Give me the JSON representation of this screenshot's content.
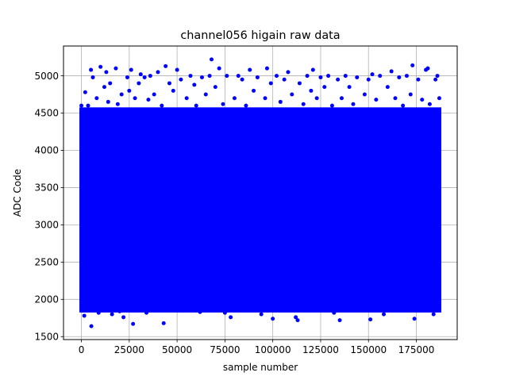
{
  "chart_data": {
    "type": "scatter",
    "title": "channel056 higain raw data",
    "xlabel": "sample number",
    "ylabel": "ADC Code",
    "xlim": [
      -9350,
      196350
    ],
    "ylim": [
      1460,
      5400
    ],
    "x_ticks": [
      0,
      25000,
      50000,
      75000,
      100000,
      125000,
      150000,
      175000
    ],
    "x_tick_labels": [
      "0",
      "25000",
      "50000",
      "75000",
      "100000",
      "125000",
      "150000",
      "175000"
    ],
    "y_ticks": [
      1500,
      2000,
      2500,
      3000,
      3500,
      4000,
      4500,
      5000
    ],
    "y_tick_labels": [
      "1500",
      "2000",
      "2500",
      "3000",
      "3500",
      "4000",
      "4500",
      "5000"
    ],
    "grid": true,
    "marker_color": "#0000ff",
    "series": [
      {
        "name": "",
        "x_range": [
          0,
          187000
        ],
        "dense_band": [
          1850,
          4550
        ],
        "points": [
          [
            0,
            4600
          ],
          [
            500,
            1850
          ],
          [
            1500,
            1780
          ],
          [
            2000,
            4780
          ],
          [
            3500,
            4600
          ],
          [
            5000,
            5080
          ],
          [
            5200,
            1640
          ],
          [
            6000,
            4980
          ],
          [
            8000,
            4700
          ],
          [
            9000,
            1820
          ],
          [
            10000,
            5120
          ],
          [
            12000,
            4850
          ],
          [
            13000,
            5050
          ],
          [
            14000,
            4650
          ],
          [
            15000,
            4900
          ],
          [
            16000,
            1800
          ],
          [
            18000,
            5100
          ],
          [
            19000,
            4620
          ],
          [
            20000,
            1840
          ],
          [
            21000,
            4750
          ],
          [
            22000,
            1760
          ],
          [
            24000,
            4980
          ],
          [
            25000,
            4800
          ],
          [
            26000,
            5080
          ],
          [
            27000,
            1670
          ],
          [
            28000,
            4700
          ],
          [
            30000,
            4900
          ],
          [
            31000,
            5020
          ],
          [
            33000,
            4980
          ],
          [
            34000,
            1820
          ],
          [
            35000,
            4680
          ],
          [
            36000,
            5000
          ],
          [
            38000,
            4750
          ],
          [
            40000,
            5050
          ],
          [
            42000,
            4600
          ],
          [
            43000,
            1680
          ],
          [
            44000,
            5130
          ],
          [
            46000,
            4900
          ],
          [
            48000,
            4800
          ],
          [
            50000,
            5080
          ],
          [
            52000,
            4950
          ],
          [
            53000,
            1850
          ],
          [
            55000,
            4700
          ],
          [
            57000,
            5000
          ],
          [
            59000,
            4880
          ],
          [
            60000,
            4600
          ],
          [
            62000,
            1830
          ],
          [
            63000,
            4980
          ],
          [
            65000,
            4750
          ],
          [
            67000,
            5000
          ],
          [
            68000,
            5220
          ],
          [
            70000,
            4850
          ],
          [
            72000,
            5100
          ],
          [
            74000,
            4620
          ],
          [
            75000,
            1820
          ],
          [
            76000,
            5000
          ],
          [
            78000,
            1760
          ],
          [
            80000,
            4700
          ],
          [
            82000,
            5000
          ],
          [
            84000,
            4950
          ],
          [
            86000,
            4600
          ],
          [
            88000,
            5080
          ],
          [
            90000,
            4800
          ],
          [
            92000,
            4980
          ],
          [
            94000,
            1800
          ],
          [
            96000,
            4700
          ],
          [
            97000,
            5100
          ],
          [
            99000,
            4900
          ],
          [
            100000,
            1740
          ],
          [
            102000,
            5000
          ],
          [
            104000,
            4650
          ],
          [
            106000,
            4950
          ],
          [
            108000,
            5050
          ],
          [
            110000,
            4750
          ],
          [
            112000,
            1760
          ],
          [
            113000,
            1720
          ],
          [
            114000,
            4900
          ],
          [
            116000,
            4620
          ],
          [
            118000,
            5000
          ],
          [
            120000,
            4800
          ],
          [
            121000,
            5080
          ],
          [
            123000,
            4700
          ],
          [
            125000,
            4980
          ],
          [
            127000,
            4850
          ],
          [
            129000,
            5000
          ],
          [
            131000,
            4600
          ],
          [
            132000,
            1820
          ],
          [
            134000,
            4950
          ],
          [
            135000,
            1720
          ],
          [
            136000,
            4700
          ],
          [
            138000,
            5000
          ],
          [
            140000,
            4850
          ],
          [
            142000,
            4620
          ],
          [
            144000,
            4980
          ],
          [
            146000,
            1860
          ],
          [
            148000,
            4750
          ],
          [
            150000,
            4950
          ],
          [
            151000,
            1730
          ],
          [
            152000,
            5020
          ],
          [
            154000,
            4680
          ],
          [
            156000,
            5000
          ],
          [
            158000,
            1800
          ],
          [
            160000,
            4850
          ],
          [
            162000,
            5060
          ],
          [
            164000,
            4700
          ],
          [
            166000,
            4980
          ],
          [
            168000,
            4600
          ],
          [
            170000,
            5000
          ],
          [
            172000,
            4750
          ],
          [
            173000,
            5140
          ],
          [
            174000,
            1740
          ],
          [
            176000,
            4950
          ],
          [
            178000,
            4680
          ],
          [
            180000,
            5080
          ],
          [
            181000,
            5100
          ],
          [
            182000,
            4620
          ],
          [
            184000,
            1800
          ],
          [
            185000,
            4950
          ],
          [
            186000,
            5000
          ],
          [
            187000,
            4700
          ]
        ]
      }
    ]
  }
}
